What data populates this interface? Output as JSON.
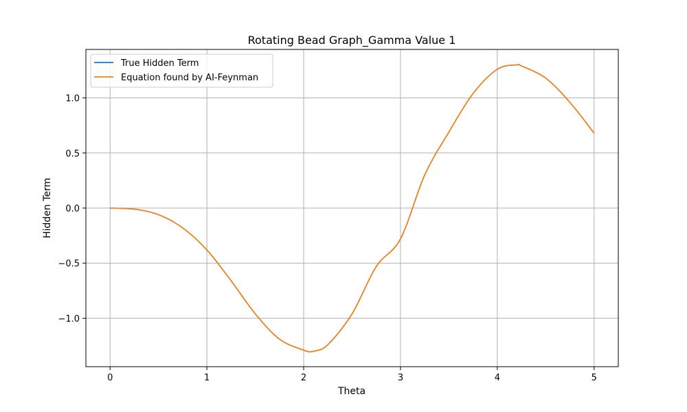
{
  "chart_data": {
    "type": "line",
    "title": "Rotating Bead Graph_Gamma Value 1",
    "xlabel": "Theta",
    "ylabel": "Hidden Term",
    "xlim": [
      -0.25,
      5.25
    ],
    "ylim": [
      -1.44,
      1.44
    ],
    "xticks": [
      0,
      1,
      2,
      3,
      4,
      5
    ],
    "xtick_labels": [
      "0",
      "1",
      "2",
      "3",
      "4",
      "5"
    ],
    "yticks": [
      -1.0,
      -0.5,
      0.0,
      0.5,
      1.0
    ],
    "ytick_labels": [
      "−1.0",
      "−0.5",
      "0.0",
      "0.5",
      "1.0"
    ],
    "grid": true,
    "legend_position": "top-left",
    "x": [
      0.0,
      0.25,
      0.5,
      0.75,
      1.0,
      1.25,
      1.5,
      1.75,
      2.0,
      2.1,
      2.25,
      2.5,
      2.75,
      3.0,
      3.25,
      3.5,
      3.75,
      4.0,
      4.2,
      4.25,
      4.5,
      4.75,
      5.0
    ],
    "series": [
      {
        "name": "True Hidden Term",
        "color": "#1f77b4",
        "values": [
          0.0,
          -0.01,
          -0.06,
          -0.18,
          -0.38,
          -0.66,
          -0.96,
          -1.19,
          -1.29,
          -1.3,
          -1.24,
          -0.96,
          -0.53,
          -0.28,
          0.3,
          0.69,
          1.04,
          1.26,
          1.3,
          1.29,
          1.18,
          0.96,
          0.68
        ]
      },
      {
        "name": "Equation found by AI-Feynman",
        "color": "#ff7f0e",
        "values": [
          0.0,
          -0.01,
          -0.06,
          -0.18,
          -0.38,
          -0.66,
          -0.96,
          -1.19,
          -1.29,
          -1.3,
          -1.24,
          -0.96,
          -0.53,
          -0.28,
          0.3,
          0.69,
          1.04,
          1.26,
          1.3,
          1.29,
          1.18,
          0.96,
          0.68
        ]
      }
    ]
  }
}
